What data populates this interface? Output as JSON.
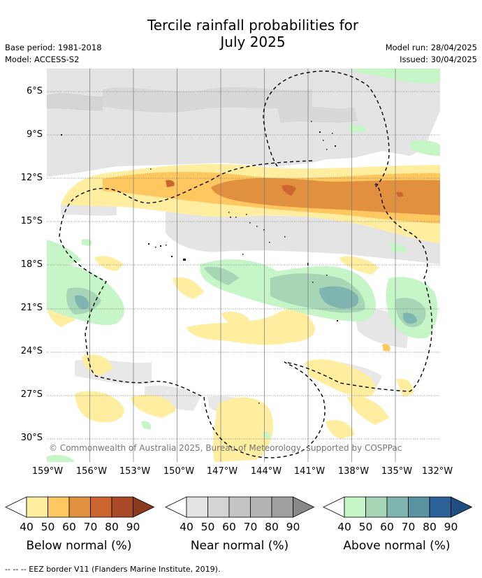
{
  "title_line1": "Tercile rainfall probabilities for",
  "title_line2": "July 2025",
  "base_period": "Base period: 1981-2018",
  "model": "Model: ACCESS-S2",
  "model_run": "Model run: 28/04/2025",
  "issued": "Issued: 30/04/2025",
  "copyright": "© Commonwealth of Australia 2025, Bureau of Meteorology, supported by COSPPac",
  "footnote": "--  --  -- EEZ border V11 (Flanders Marine Institute, 2019).",
  "lat_labels": [
    "6°S",
    "9°S",
    "12°S",
    "15°S",
    "18°S",
    "21°S",
    "24°S",
    "27°S",
    "30°S"
  ],
  "lon_labels": [
    "159°W",
    "156°W",
    "153°W",
    "150°W",
    "147°W",
    "144°W",
    "141°W",
    "138°W",
    "135°W",
    "132°W"
  ],
  "legends": [
    {
      "name": "Below normal (%)",
      "colors": [
        "#ffeda0",
        "#fec760",
        "#e0903f",
        "#cc6530",
        "#a84a28",
        "#8a3a1e"
      ],
      "ticks": [
        "40",
        "50",
        "60",
        "70",
        "80",
        "90"
      ]
    },
    {
      "name": "Near normal (%)",
      "colors": [
        "#e4e4e4",
        "#d4d4d4",
        "#c4c4c4",
        "#b4b4b4",
        "#a0a0a0",
        "#888888"
      ],
      "ticks": [
        "40",
        "50",
        "60",
        "70",
        "80",
        "90"
      ]
    },
    {
      "name": "Above normal (%)",
      "colors": [
        "#c6f5c8",
        "#a6d6b6",
        "#80b4b0",
        "#5a94a0",
        "#2c6098",
        "#204e80"
      ],
      "ticks": [
        "40",
        "50",
        "60",
        "70",
        "80",
        "90"
      ]
    }
  ]
}
